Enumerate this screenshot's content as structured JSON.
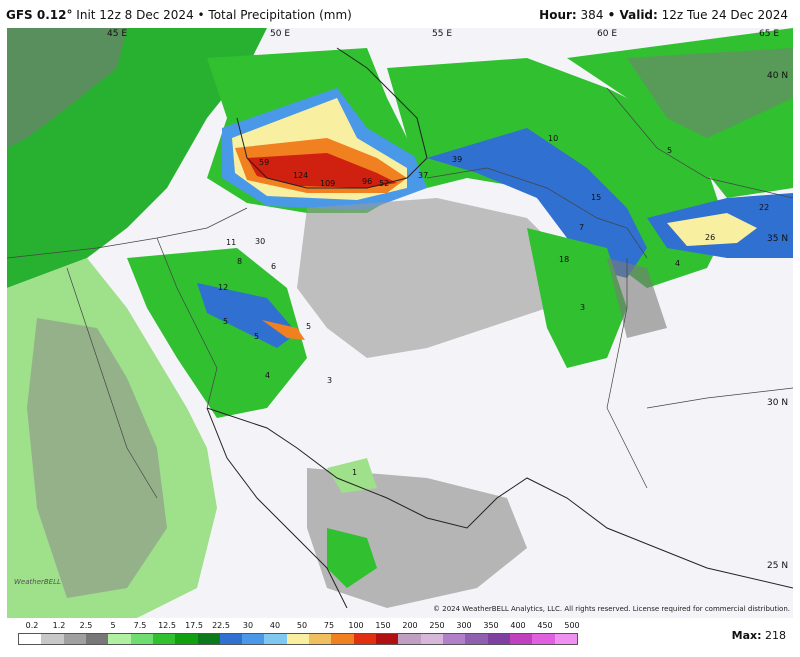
{
  "header": {
    "model": "GFS 0.12",
    "degree": "°",
    "init": " Init 12z 8 Dec 2024 • Total Precipitation (mm)",
    "hour_label": "Hour:",
    "hour_value": "384",
    "valid_label": " • Valid:",
    "valid_value": " 12z Tue 24 Dec 2024"
  },
  "map": {
    "lon_labels": [
      "45 E",
      "50 E",
      "55 E",
      "60 E",
      "65 E"
    ],
    "lat_labels": [
      "40 N",
      "35 N",
      "30 N",
      "25 N"
    ],
    "values": [
      "59",
      "124",
      "109",
      "96",
      "52",
      "37",
      "39",
      "10",
      "5",
      "15",
      "22",
      "26",
      "7",
      "18",
      "4",
      "3",
      "11",
      "30",
      "8",
      "6",
      "12",
      "5",
      "5",
      "4",
      "3",
      "1",
      "5"
    ],
    "copyright": "© 2024 WeatherBELL Analytics, LLC. All rights reserved. License required for commercial distribution.",
    "logo_text": "WeatherBELL"
  },
  "colorbar": {
    "labels": [
      "0.2",
      "1.2",
      "2.5",
      "5",
      "7.5",
      "12.5",
      "17.5",
      "22.5",
      "30",
      "40",
      "50",
      "75",
      "100",
      "150",
      "200",
      "250",
      "300",
      "350",
      "400",
      "450",
      "500"
    ],
    "colors": [
      "#ffffff",
      "#c8c8c8",
      "#a0a0a0",
      "#787878",
      "#b0f0a0",
      "#70dd70",
      "#30c030",
      "#10a010",
      "#0a7a1a",
      "#3070d0",
      "#4a98e8",
      "#80c8f0",
      "#f8f0a0",
      "#f0c060",
      "#f08020",
      "#e03010",
      "#b01010",
      "#c0a0c0",
      "#d8b8d8",
      "#b080c8",
      "#9060b0",
      "#8040a0",
      "#c040c0",
      "#e060e0",
      "#f090f0"
    ]
  },
  "footer": {
    "max_label": "Max:",
    "max_value": "218"
  }
}
